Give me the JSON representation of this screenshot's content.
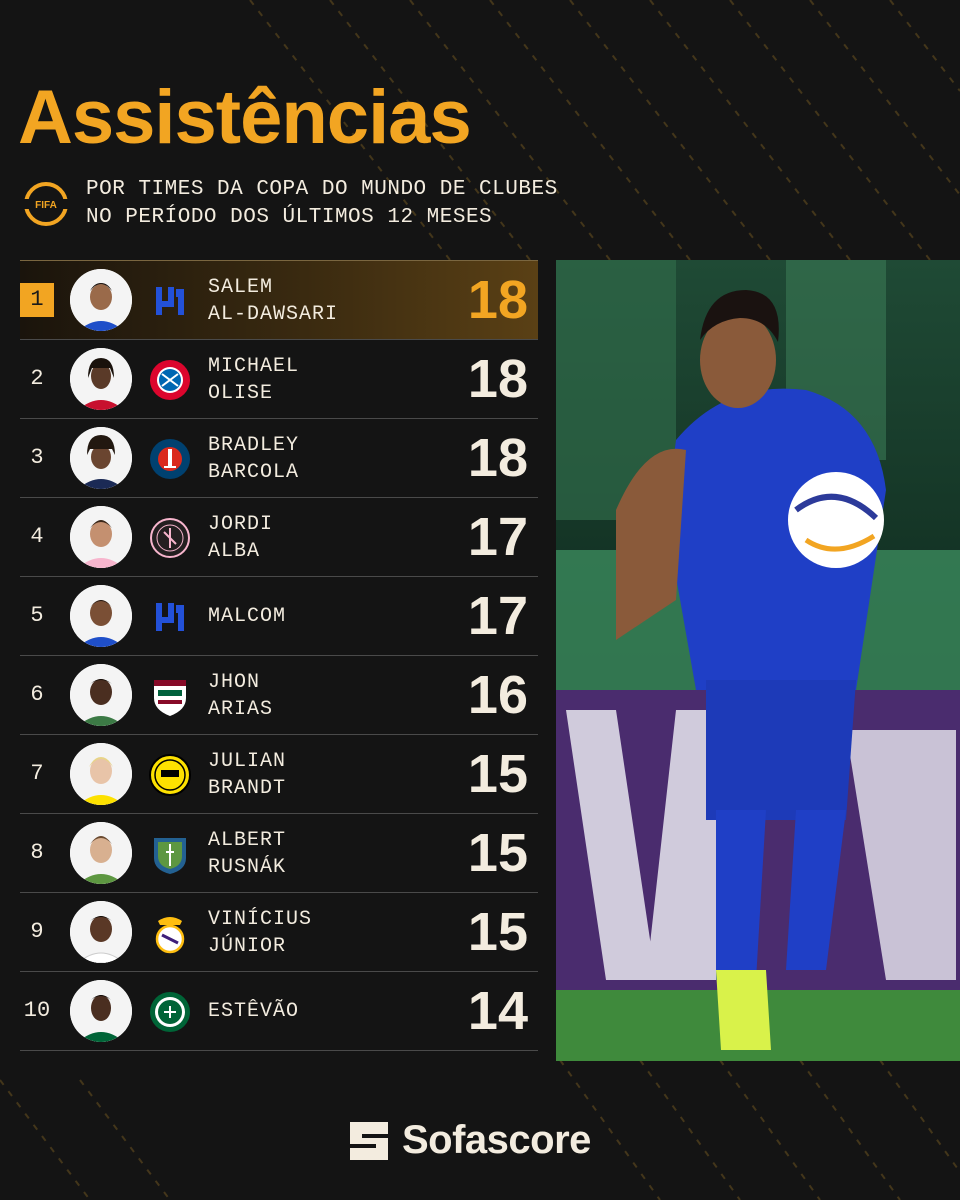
{
  "colors": {
    "accent": "#f2a522",
    "background": "#141414",
    "text": "#f3ecdf"
  },
  "title": "Assistências",
  "subtitle": {
    "icon": "fifa-club-world-cup-icon",
    "badge_text": "FIFA",
    "line1": "POR TIMES DA COPA DO MUNDO DE CLUBES",
    "line2": "NO PERÍODO DOS ÚLTIMOS 12 MESES"
  },
  "ranking": [
    {
      "rank": "1",
      "first": "SALEM",
      "last": "AL-DAWSARI",
      "assists": "18",
      "club_icon": "al-hilal-crest-icon",
      "highlight": true
    },
    {
      "rank": "2",
      "first": "MICHAEL",
      "last": "OLISE",
      "assists": "18",
      "club_icon": "bayern-munchen-crest-icon"
    },
    {
      "rank": "3",
      "first": "BRADLEY",
      "last": "BARCOLA",
      "assists": "18",
      "club_icon": "paris-saint-germain-crest-icon"
    },
    {
      "rank": "4",
      "first": "JORDI",
      "last": "ALBA",
      "assists": "17",
      "club_icon": "inter-miami-crest-icon"
    },
    {
      "rank": "5",
      "first": "MALCOM",
      "last": "",
      "assists": "17",
      "club_icon": "al-hilal-crest-icon"
    },
    {
      "rank": "6",
      "first": "JHON",
      "last": "ARIAS",
      "assists": "16",
      "club_icon": "fluminense-crest-icon"
    },
    {
      "rank": "7",
      "first": "JULIAN",
      "last": "BRANDT",
      "assists": "15",
      "club_icon": "borussia-dortmund-crest-icon"
    },
    {
      "rank": "8",
      "first": "ALBERT",
      "last": "RUSNÁK",
      "assists": "15",
      "club_icon": "seattle-sounders-crest-icon"
    },
    {
      "rank": "9",
      "first": "VINÍCIUS",
      "last": "JÚNIOR",
      "assists": "15",
      "club_icon": "real-madrid-crest-icon"
    },
    {
      "rank": "10",
      "first": "ESTÊVÃO",
      "last": "",
      "assists": "14",
      "club_icon": "palmeiras-crest-icon"
    }
  ],
  "hero_image": "player-photo-salem-al-dawsari",
  "brand": {
    "name": "Sofascore",
    "icon": "sofascore-logo-icon"
  }
}
